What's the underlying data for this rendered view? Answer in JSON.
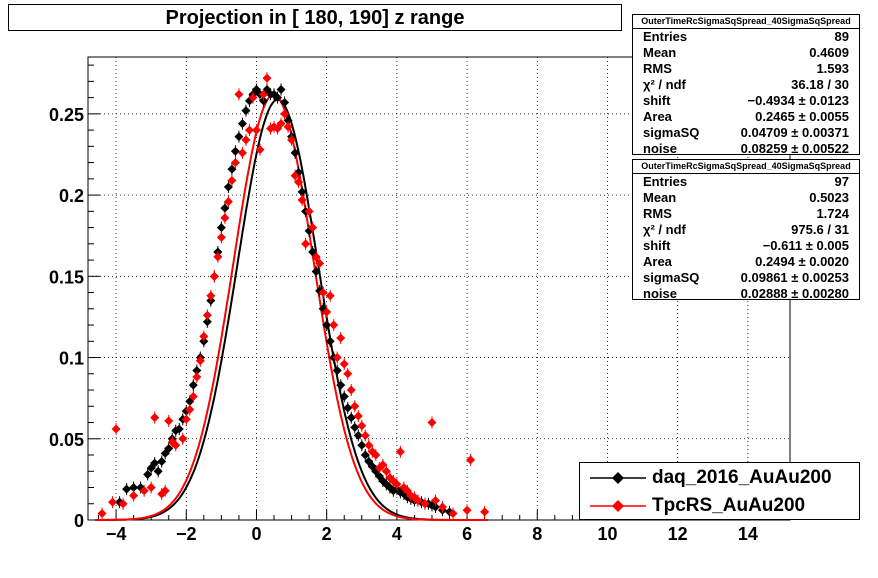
{
  "title": "Projection in [ 180, 190] z range",
  "stats_boxes": [
    {
      "name": "OuterTimeRcSigmaSqSpread_40SigmaSqSpread",
      "rows": [
        {
          "k": "Entries",
          "v": "89"
        },
        {
          "k": "Mean",
          "v": "0.4609"
        },
        {
          "k": "RMS",
          "v": "1.593"
        },
        {
          "k": "χ² / ndf",
          "v": "36.18 / 30"
        },
        {
          "k": "shift",
          "v": "−0.4934 ± 0.0123"
        },
        {
          "k": "Area",
          "v": "0.2465 ± 0.0055"
        },
        {
          "k": "sigmaSQ",
          "v": "0.04709 ± 0.00371"
        },
        {
          "k": "noise",
          "v": "0.08259 ± 0.00522"
        }
      ]
    },
    {
      "name": "OuterTimeRcSigmaSqSpread_40SigmaSqSpread",
      "rows": [
        {
          "k": "Entries",
          "v": "97"
        },
        {
          "k": "Mean",
          "v": "0.5023"
        },
        {
          "k": "RMS",
          "v": "1.724"
        },
        {
          "k": "χ² / ndf",
          "v": "975.6 / 31"
        },
        {
          "k": "shift",
          "v": "−0.611 ± 0.005"
        },
        {
          "k": "Area",
          "v": "0.2494 ± 0.0020"
        },
        {
          "k": "sigmaSQ",
          "v": "0.09861 ± 0.00253"
        },
        {
          "k": "noise",
          "v": "0.02888 ± 0.00280"
        }
      ]
    }
  ],
  "legend": [
    {
      "label": "daq_2016_AuAu200",
      "color": "#000000"
    },
    {
      "label": "TpcRS_AuAu200",
      "color": "#ff0000"
    }
  ],
  "chart_data": {
    "type": "scatter",
    "title": "Projection in [ 180, 190] z range",
    "xlabel": "",
    "ylabel": "",
    "xlim": [
      -4.8,
      15.2
    ],
    "ylim": [
      0,
      0.285
    ],
    "x_ticks": [
      -4,
      -2,
      0,
      2,
      4,
      6,
      8,
      10,
      12,
      14
    ],
    "x_tick_labels": [
      "−4",
      "−2",
      "0",
      "2",
      "4",
      "6",
      "8",
      "10",
      "12",
      "14"
    ],
    "y_ticks": [
      0,
      0.05,
      0.1,
      0.15,
      0.2,
      0.25
    ],
    "y_tick_labels": [
      "0",
      "0.05",
      "0.1",
      "0.15",
      "0.2",
      "0.25"
    ],
    "grid": true,
    "legend_position": "bottom-right",
    "series": [
      {
        "name": "daq_2016_AuAu200",
        "color": "#000000",
        "marker": "diamond",
        "x": [
          -3.9,
          -3.7,
          -3.5,
          -3.3,
          -3.1,
          -3.0,
          -2.9,
          -2.8,
          -2.7,
          -2.6,
          -2.5,
          -2.4,
          -2.3,
          -2.2,
          -2.1,
          -2.0,
          -1.9,
          -1.8,
          -1.7,
          -1.6,
          -1.5,
          -1.4,
          -1.3,
          -1.2,
          -1.1,
          -1.0,
          -0.9,
          -0.8,
          -0.7,
          -0.6,
          -0.5,
          -0.4,
          -0.3,
          -0.2,
          -0.1,
          0.0,
          0.1,
          0.2,
          0.3,
          0.4,
          0.5,
          0.6,
          0.7,
          0.8,
          0.9,
          1.0,
          1.1,
          1.2,
          1.3,
          1.4,
          1.5,
          1.6,
          1.7,
          1.8,
          1.9,
          2.0,
          2.1,
          2.2,
          2.3,
          2.4,
          2.5,
          2.6,
          2.7,
          2.8,
          2.9,
          3.0,
          3.1,
          3.2,
          3.3,
          3.4,
          3.5,
          3.6,
          3.7,
          3.8,
          3.9,
          4.0,
          4.1,
          4.2,
          4.3,
          4.4,
          4.5,
          4.6,
          4.7,
          4.8,
          4.9,
          5.0,
          5.1,
          5.3,
          5.5
        ],
        "y": [
          0.011,
          0.019,
          0.02,
          0.02,
          0.028,
          0.032,
          0.035,
          0.03,
          0.036,
          0.041,
          0.044,
          0.05,
          0.055,
          0.056,
          0.062,
          0.067,
          0.073,
          0.083,
          0.092,
          0.1,
          0.11,
          0.122,
          0.135,
          0.15,
          0.165,
          0.18,
          0.192,
          0.205,
          0.216,
          0.227,
          0.236,
          0.244,
          0.252,
          0.258,
          0.262,
          0.265,
          0.262,
          0.258,
          0.265,
          0.262,
          0.262,
          0.26,
          0.265,
          0.257,
          0.246,
          0.236,
          0.226,
          0.214,
          0.202,
          0.19,
          0.178,
          0.165,
          0.153,
          0.141,
          0.13,
          0.12,
          0.11,
          0.1,
          0.092,
          0.083,
          0.076,
          0.069,
          0.063,
          0.057,
          0.052,
          0.046,
          0.04,
          0.036,
          0.033,
          0.03,
          0.027,
          0.024,
          0.022,
          0.02,
          0.018,
          0.019,
          0.017,
          0.016,
          0.014,
          0.013,
          0.012,
          0.012,
          0.011,
          0.01,
          0.01,
          0.009,
          0.008,
          0.006,
          0.005
        ]
      },
      {
        "name": "TpcRS_AuAu200",
        "color": "#ff0000",
        "marker": "diamond",
        "x": [
          -4.4,
          -4.1,
          -4.0,
          -3.8,
          -3.5,
          -3.2,
          -3.0,
          -2.9,
          -2.7,
          -2.6,
          -2.5,
          -2.4,
          -2.3,
          -2.1,
          -2.0,
          -1.9,
          -1.8,
          -1.7,
          -1.6,
          -1.5,
          -1.4,
          -1.3,
          -1.2,
          -1.1,
          -1.0,
          -0.9,
          -0.8,
          -0.7,
          -0.6,
          -0.5,
          -0.4,
          -0.3,
          -0.2,
          -0.1,
          0.0,
          0.1,
          0.2,
          0.3,
          0.4,
          0.5,
          0.6,
          0.7,
          0.8,
          0.9,
          1.0,
          1.1,
          1.2,
          1.3,
          1.4,
          1.5,
          1.6,
          1.7,
          1.8,
          1.9,
          2.0,
          2.1,
          2.2,
          2.3,
          2.4,
          2.5,
          2.6,
          2.7,
          2.8,
          2.9,
          3.0,
          3.1,
          3.2,
          3.3,
          3.4,
          3.5,
          3.6,
          3.7,
          3.8,
          3.9,
          4.0,
          4.1,
          4.2,
          4.3,
          4.4,
          4.5,
          4.6,
          4.8,
          5.0,
          5.1,
          5.3,
          5.6,
          6.0,
          6.1,
          6.5
        ],
        "y": [
          0.004,
          0.011,
          0.056,
          0.01,
          0.015,
          0.018,
          0.02,
          0.063,
          0.016,
          0.018,
          0.061,
          0.048,
          0.046,
          0.05,
          0.062,
          0.068,
          0.076,
          0.088,
          0.098,
          0.113,
          0.126,
          0.138,
          0.15,
          0.162,
          0.174,
          0.186,
          0.196,
          0.209,
          0.22,
          0.262,
          0.226,
          0.234,
          0.24,
          0.26,
          0.24,
          0.228,
          0.262,
          0.272,
          0.241,
          0.242,
          0.241,
          0.244,
          0.25,
          0.242,
          0.234,
          0.212,
          0.208,
          0.197,
          0.17,
          0.19,
          0.18,
          0.162,
          0.158,
          0.14,
          0.128,
          0.138,
          0.12,
          0.1,
          0.112,
          0.096,
          0.09,
          0.08,
          0.07,
          0.064,
          0.058,
          0.052,
          0.046,
          0.042,
          0.04,
          0.032,
          0.034,
          0.03,
          0.026,
          0.024,
          0.022,
          0.042,
          0.02,
          0.018,
          0.015,
          0.014,
          0.012,
          0.01,
          0.06,
          0.012,
          0.008,
          0.004,
          0.006,
          0.037,
          0.005
        ]
      }
    ],
    "fit_curves": [
      {
        "series": "daq_2016_AuAu200",
        "color": "#000000",
        "shift": -0.4934,
        "area": 0.2465,
        "sigmaSQ": 0.04709,
        "noise": 0.08259
      },
      {
        "series": "TpcRS_AuAu200",
        "color": "#ff0000",
        "shift": -0.611,
        "area": 0.2494,
        "sigmaSQ": 0.09861,
        "noise": 0.02888
      }
    ]
  }
}
